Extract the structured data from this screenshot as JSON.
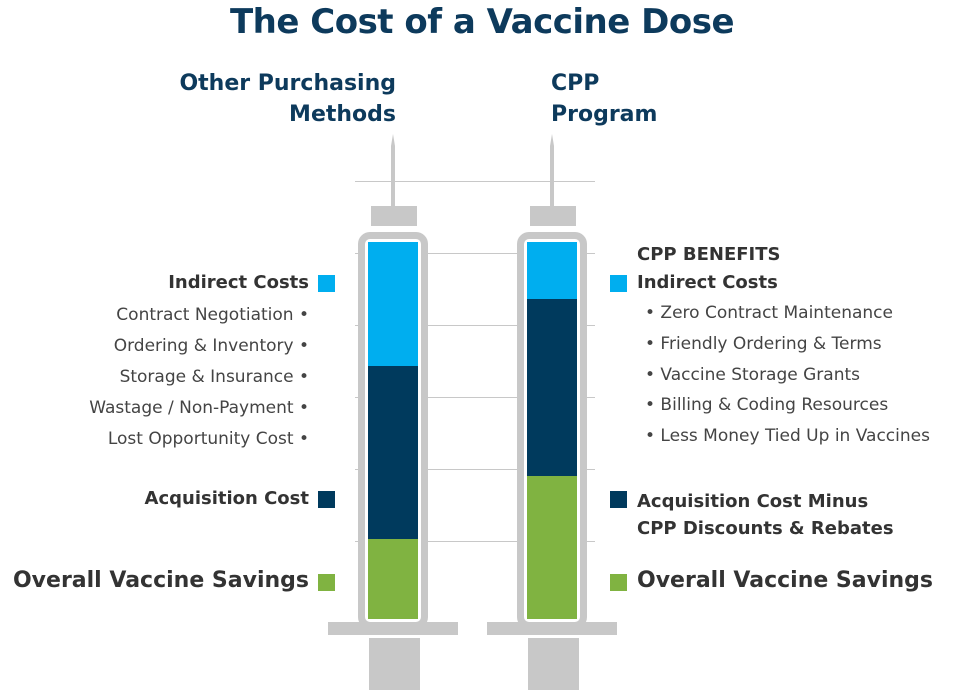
{
  "title": "The Cost of a Vaccine Dose",
  "columns": {
    "left": {
      "heading_line1": "Other Purchasing",
      "heading_line2": "Methods"
    },
    "right": {
      "heading_line1": "CPP",
      "heading_line2": "Program"
    }
  },
  "colors": {
    "indirect": "#00aeef",
    "acquisition": "#003a5d",
    "savings": "#80b341",
    "frame": "#c8c8c8",
    "heading": "#0d3a5c"
  },
  "syringes": {
    "left": {
      "indirect_fraction": 0.33,
      "acquisition_fraction": 0.46,
      "savings_fraction": 0.21
    },
    "right": {
      "indirect_fraction": 0.15,
      "acquisition_fraction": 0.47,
      "savings_fraction": 0.38
    }
  },
  "left_labels": {
    "indirect": "Indirect Costs",
    "indirect_items": [
      "Contract Negotiation •",
      "Ordering & Inventory •",
      "Storage & Insurance •",
      "Wastage / Non-Payment •",
      "Lost Opportunity Cost •"
    ],
    "acquisition": "Acquisition Cost",
    "savings": "Overall Vaccine Savings"
  },
  "right_labels": {
    "benefits_heading": "CPP BENEFITS",
    "indirect": "Indirect Costs",
    "indirect_items": [
      "• Zero Contract Maintenance",
      "• Friendly Ordering & Terms",
      "• Vaccine Storage Grants",
      "• Billing & Coding Resources",
      "• Less Money Tied Up in Vaccines"
    ],
    "acquisition_line1": "Acquisition Cost Minus",
    "acquisition_line2": "CPP Discounts & Rebates",
    "savings": "Overall Vaccine Savings"
  }
}
